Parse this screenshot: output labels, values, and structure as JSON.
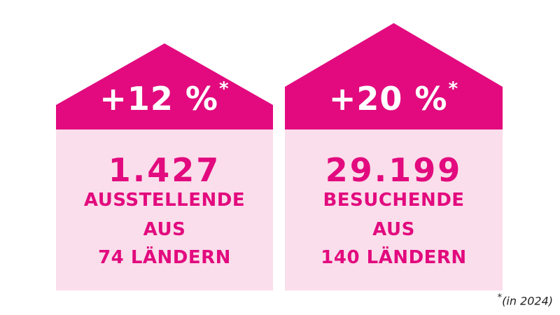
{
  "colors": {
    "roof": "#e20a7e",
    "body": "#fadeeb",
    "accent_text": "#e20a7e",
    "roof_text": "#ffffff"
  },
  "houses": [
    {
      "roof_value": "+12 %",
      "roof_marker": "*",
      "number": "1.427",
      "lines": [
        "AUSSTELLENDE",
        "AUS",
        "74 LÄNDERN"
      ]
    },
    {
      "roof_value": "+20 %",
      "roof_marker": "*",
      "number": "29.199",
      "lines": [
        "BESUCHENDE",
        "AUS",
        "140 LÄNDERN"
      ]
    }
  ],
  "footnote": {
    "marker": "*",
    "text": "(in 2024)"
  }
}
